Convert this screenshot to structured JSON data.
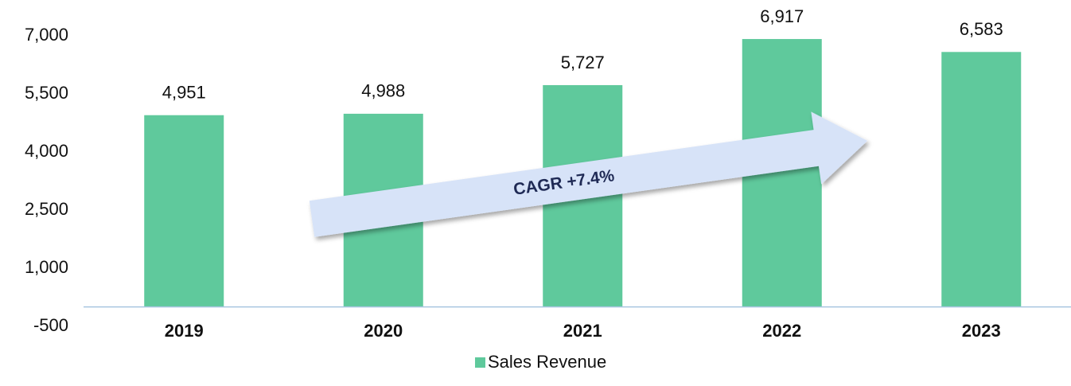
{
  "chart_data": {
    "type": "bar",
    "categories": [
      "2019",
      "2020",
      "2021",
      "2022",
      "2023"
    ],
    "series": [
      {
        "name": "Sales Revenue",
        "color": "#5fc99c",
        "values": [
          4951,
          4988,
          5727,
          6917,
          6583
        ],
        "value_labels": [
          "4,951",
          "4,988",
          "5,727",
          "6,917",
          "6,583"
        ]
      }
    ],
    "ylim": [
      -500,
      7000
    ],
    "yticks": [
      -500,
      {
        "value": 1000,
        "label": "1,000"
      },
      {
        "value": 2500,
        "label": "2,500"
      },
      {
        "value": 4000,
        "label": "4,000"
      },
      {
        "value": 5500,
        "label": "5,500"
      },
      {
        "value": 7000,
        "label": "7,000"
      }
    ],
    "grid": false,
    "annotation": "CAGR +7.4%",
    "legend": "bottom"
  }
}
